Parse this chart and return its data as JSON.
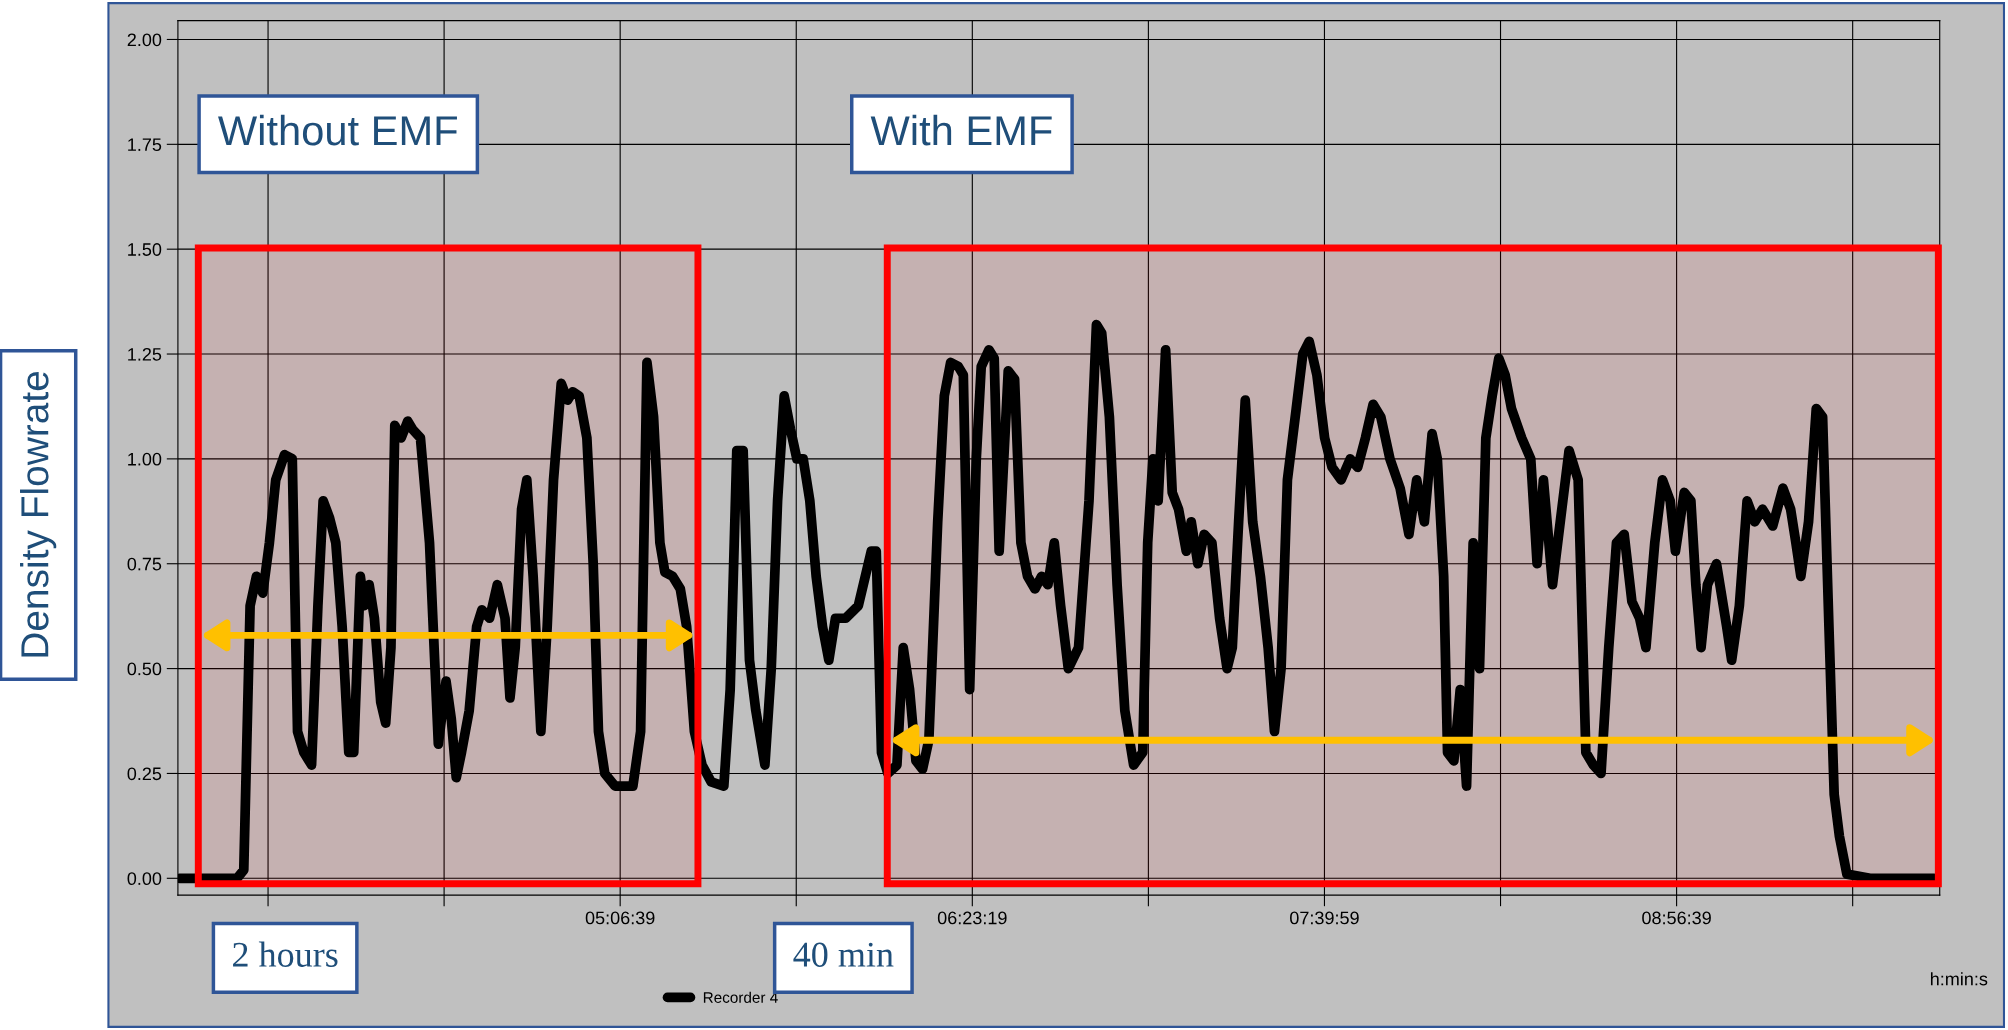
{
  "chart_data": {
    "type": "line",
    "ylabel": "Density Flowrate",
    "xlabel": "h:min:s",
    "annotations": [
      "2 hours",
      "40 min"
    ],
    "xlim": [
      3.506,
      9.899
    ],
    "ylim": [
      -0.04,
      2.045
    ],
    "xticks": [
      {
        "value": 3.8331,
        "label": null
      },
      {
        "value": 4.4719,
        "label": null
      },
      {
        "value": 5.1108,
        "label": "05:06:39"
      },
      {
        "value": 5.7497,
        "label": null
      },
      {
        "value": 6.3886,
        "label": "06:23:19"
      },
      {
        "value": 7.0275,
        "label": null
      },
      {
        "value": 7.6664,
        "label": "07:39:59"
      },
      {
        "value": 8.3053,
        "label": null
      },
      {
        "value": 8.9442,
        "label": "08:56:39"
      },
      {
        "value": 9.5831,
        "label": null
      }
    ],
    "yticks": [
      {
        "value": 0,
        "label": "0.00"
      },
      {
        "value": 0.25,
        "label": "0.25"
      },
      {
        "value": 0.5,
        "label": "0.50"
      },
      {
        "value": 0.75,
        "label": "0.75"
      },
      {
        "value": 1.0,
        "label": "1.00"
      },
      {
        "value": 1.25,
        "label": "1.25"
      },
      {
        "value": 1.5,
        "label": "1.50"
      },
      {
        "value": 1.75,
        "label": "1.75"
      },
      {
        "value": 2.0,
        "label": "2.00"
      }
    ],
    "grid": true,
    "legend": "bottom",
    "marker": "none",
    "line_style": "solid",
    "bands": [
      {
        "axis": "x",
        "from": 3.58,
        "to": 5.393,
        "label": "Without EMF",
        "color": "#ff0000"
      },
      {
        "axis": "x",
        "from": 6.08,
        "to": 9.894,
        "label": "With EMF",
        "color": "#ff0000"
      }
    ],
    "series": [
      {
        "name": "Recorder 4",
        "color": "#000000",
        "x": [
          3.512,
          3.721,
          3.745,
          3.768,
          3.791,
          3.814,
          3.838,
          3.861,
          3.893,
          3.921,
          3.94,
          3.963,
          3.991,
          4.014,
          4.033,
          4.056,
          4.079,
          4.102,
          4.126,
          4.144,
          4.168,
          4.182,
          4.2,
          4.219,
          4.242,
          4.26,
          4.279,
          4.293,
          4.316,
          4.34,
          4.358,
          4.386,
          4.419,
          4.451,
          4.479,
          4.498,
          4.516,
          4.535,
          4.563,
          4.59,
          4.609,
          4.637,
          4.665,
          4.693,
          4.711,
          4.73,
          4.753,
          4.772,
          4.795,
          4.823,
          4.846,
          4.869,
          4.897,
          4.92,
          4.939,
          4.962,
          4.99,
          5.013,
          5.032,
          5.055,
          5.092,
          5.157,
          5.185,
          5.208,
          5.232,
          5.255,
          5.273,
          5.301,
          5.329,
          5.352,
          5.38,
          5.408,
          5.441,
          5.487,
          5.51,
          5.534,
          5.557,
          5.58,
          5.603,
          5.636,
          5.659,
          5.682,
          5.706,
          5.729,
          5.752,
          5.775,
          5.799,
          5.822,
          5.845,
          5.868,
          5.892,
          5.929,
          5.975,
          6.022,
          6.04,
          6.059,
          6.082,
          6.115,
          6.138,
          6.161,
          6.184,
          6.208,
          6.231,
          6.263,
          6.287,
          6.31,
          6.338,
          6.356,
          6.379,
          6.403,
          6.421,
          6.449,
          6.468,
          6.486,
          6.519,
          6.542,
          6.565,
          6.589,
          6.616,
          6.64,
          6.663,
          6.686,
          6.709,
          6.737,
          6.774,
          6.812,
          6.839,
          6.858,
          6.886,
          6.914,
          6.942,
          6.974,
          7.007,
          7.025,
          7.044,
          7.063,
          7.09,
          7.114,
          7.137,
          7.165,
          7.183,
          7.207,
          7.23,
          7.258,
          7.286,
          7.313,
          7.332,
          7.355,
          7.379,
          7.406,
          7.434,
          7.462,
          7.485,
          7.509,
          7.532,
          7.564,
          7.588,
          7.611,
          7.639,
          7.667,
          7.694,
          7.727,
          7.76,
          7.787,
          7.815,
          7.843,
          7.871,
          7.904,
          7.941,
          7.973,
          8.001,
          8.029,
          8.057,
          8.076,
          8.099,
          8.113,
          8.136,
          8.159,
          8.182,
          8.206,
          8.229,
          8.252,
          8.275,
          8.299,
          8.322,
          8.345,
          8.382,
          8.415,
          8.438,
          8.461,
          8.494,
          8.522,
          8.554,
          8.587,
          8.615,
          8.642,
          8.67,
          8.698,
          8.726,
          8.754,
          8.782,
          8.81,
          8.833,
          8.865,
          8.893,
          8.921,
          8.94,
          8.972,
          8.996,
          9.014,
          9.033,
          9.056,
          9.089,
          9.126,
          9.144,
          9.172,
          9.2,
          9.228,
          9.256,
          9.293,
          9.33,
          9.358,
          9.377,
          9.395,
          9.423,
          9.451,
          9.474,
          9.497,
          9.516,
          9.535,
          9.562,
          9.646,
          9.878
        ],
        "values": [
          0.0,
          0.0,
          0.02,
          0.65,
          0.72,
          0.68,
          0.8,
          0.95,
          1.01,
          1.0,
          0.35,
          0.3,
          0.27,
          0.65,
          0.9,
          0.86,
          0.8,
          0.6,
          0.3,
          0.3,
          0.72,
          0.65,
          0.7,
          0.62,
          0.42,
          0.37,
          0.55,
          1.08,
          1.05,
          1.09,
          1.07,
          1.05,
          0.8,
          0.32,
          0.47,
          0.38,
          0.24,
          0.3,
          0.4,
          0.6,
          0.64,
          0.62,
          0.7,
          0.62,
          0.43,
          0.55,
          0.88,
          0.95,
          0.72,
          0.35,
          0.6,
          0.95,
          1.18,
          1.14,
          1.16,
          1.15,
          1.05,
          0.75,
          0.35,
          0.25,
          0.22,
          0.22,
          0.35,
          1.23,
          1.1,
          0.8,
          0.73,
          0.72,
          0.69,
          0.6,
          0.35,
          0.27,
          0.23,
          0.22,
          0.45,
          1.02,
          1.02,
          0.52,
          0.4,
          0.27,
          0.5,
          0.9,
          1.15,
          1.07,
          1.0,
          1.0,
          0.9,
          0.72,
          0.6,
          0.52,
          0.62,
          0.62,
          0.65,
          0.78,
          0.78,
          0.3,
          0.25,
          0.27,
          0.55,
          0.45,
          0.28,
          0.26,
          0.33,
          0.85,
          1.15,
          1.23,
          1.22,
          1.2,
          0.45,
          1.0,
          1.22,
          1.26,
          1.24,
          0.78,
          1.21,
          1.19,
          0.8,
          0.72,
          0.69,
          0.72,
          0.7,
          0.8,
          0.65,
          0.5,
          0.55,
          0.9,
          1.32,
          1.3,
          1.1,
          0.7,
          0.4,
          0.27,
          0.3,
          0.8,
          1.0,
          0.9,
          1.26,
          0.92,
          0.88,
          0.78,
          0.85,
          0.75,
          0.82,
          0.8,
          0.62,
          0.5,
          0.55,
          0.85,
          1.14,
          0.85,
          0.72,
          0.55,
          0.35,
          0.5,
          0.95,
          1.12,
          1.25,
          1.28,
          1.2,
          1.05,
          0.98,
          0.95,
          1.0,
          0.98,
          1.05,
          1.13,
          1.1,
          1.0,
          0.93,
          0.82,
          0.95,
          0.85,
          1.06,
          1.0,
          0.72,
          0.3,
          0.28,
          0.45,
          0.22,
          0.8,
          0.5,
          1.05,
          1.15,
          1.24,
          1.2,
          1.12,
          1.05,
          1.0,
          0.75,
          0.95,
          0.7,
          0.85,
          1.02,
          0.95,
          0.3,
          0.27,
          0.25,
          0.55,
          0.8,
          0.82,
          0.66,
          0.62,
          0.55,
          0.8,
          0.95,
          0.9,
          0.78,
          0.92,
          0.9,
          0.7,
          0.55,
          0.7,
          0.75,
          0.6,
          0.52,
          0.65,
          0.9,
          0.85,
          0.88,
          0.84,
          0.93,
          0.88,
          0.8,
          0.72,
          0.85,
          1.12,
          1.1,
          0.6,
          0.2,
          0.1,
          0.01,
          0.0,
          0.0
        ]
      }
    ]
  }
}
